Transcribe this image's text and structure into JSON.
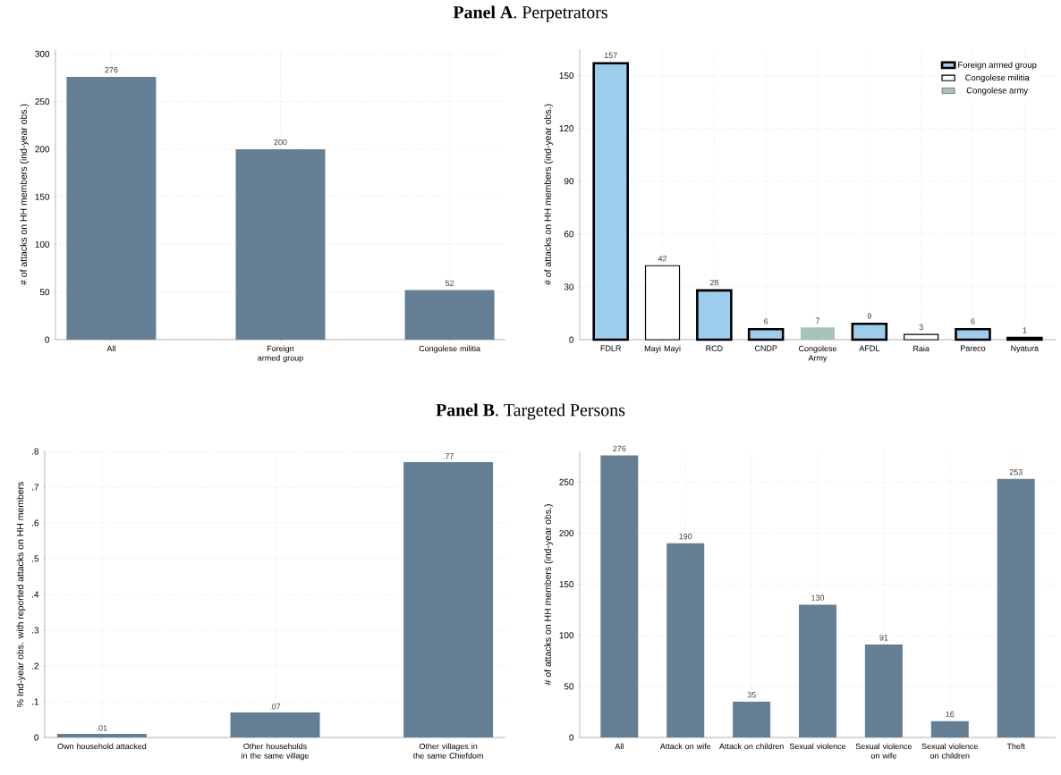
{
  "chart_data": [
    {
      "type": "bar",
      "title": "**Panel A**. Perpetrators",
      "ylabel": "# of attacks on HH members (ind-year obs.)",
      "categories": [
        "All",
        "Foreign armed group",
        "Congolese militia"
      ],
      "values": [
        276,
        200,
        52
      ],
      "color": "#647f94",
      "ylim": [
        0,
        305
      ],
      "yticks": [
        0,
        50,
        100,
        150,
        200,
        250,
        300
      ],
      "grid": true,
      "data_labels": true
    },
    {
      "type": "bar",
      "ylabel": "# of attacks on HH members (ind-year obs.)",
      "categories": [
        "FDLR",
        "Mayi Mayi",
        "RCD",
        "CNDP",
        "Congolese Army",
        "AFDL",
        "Raia",
        "Pareco",
        "Nyatura"
      ],
      "series": [
        {
          "name": "Foreign armed group",
          "color": "#9dcdec",
          "values": [
            157,
            null,
            28,
            6,
            null,
            9,
            null,
            6,
            1
          ]
        },
        {
          "name": "Congolese militia",
          "color": "#ffffff",
          "values": [
            null,
            42,
            null,
            null,
            null,
            null,
            3,
            null,
            null
          ]
        },
        {
          "name": "Congolese army",
          "color": "#a7c3bd",
          "values": [
            null,
            null,
            null,
            null,
            7,
            null,
            null,
            null,
            null
          ]
        }
      ],
      "ylim": [
        0,
        165
      ],
      "yticks": [
        0,
        30,
        60,
        90,
        120,
        150
      ],
      "grid": true,
      "legend": "top right",
      "data_labels": true
    },
    {
      "type": "bar",
      "title": "**Panel B**. Targeted Persons",
      "ylabel": "% Ind-year obs. with reported attacks on HH members",
      "categories": [
        "Own household attacked",
        "Other households in the same village",
        "Other villages in the same Chiefdom"
      ],
      "values": [
        0.01,
        0.07,
        0.77
      ],
      "value_labels": [
        ".01",
        ".07",
        ".77"
      ],
      "color": "#647f94",
      "ylim": [
        0,
        0.8
      ],
      "yticks": [
        0,
        {
          "value": 0.1,
          "label": ".1"
        },
        {
          "value": 0.2,
          "label": ".2"
        },
        {
          "value": 0.3,
          "label": ".3"
        },
        {
          "value": 0.4,
          "label": ".4"
        },
        {
          "value": 0.5,
          "label": ".5"
        },
        {
          "value": 0.6,
          "label": ".6"
        },
        {
          "value": 0.7,
          "label": ".7"
        },
        {
          "value": 0.8,
          "label": ".8"
        }
      ],
      "grid": true
    },
    {
      "type": "bar",
      "ylabel": "# of attacks on HH members (ind-year obs.)",
      "categories": [
        "All",
        "Attack on wife",
        "Attack on children",
        "Sexual violence",
        "Sexual violence on wife",
        "Sexual violence on children",
        "Theft"
      ],
      "values": [
        276,
        190,
        35,
        130,
        91,
        16,
        253
      ],
      "color": "#647f94",
      "ylim": [
        0,
        280
      ],
      "yticks": [
        0,
        50,
        100,
        150,
        200,
        250
      ],
      "grid": true,
      "data_labels": true
    }
  ]
}
